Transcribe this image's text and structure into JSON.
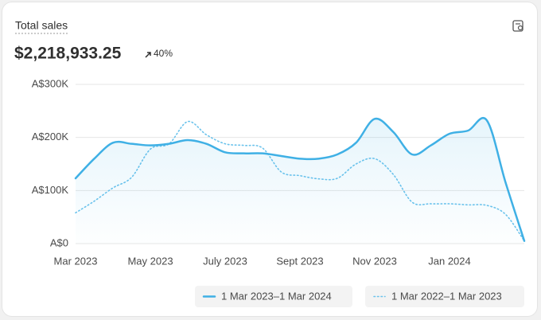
{
  "chart_data": {
    "type": "line",
    "title": "Total sales",
    "total": "$2,218,933.25",
    "change": "40%",
    "categories": [
      "Mar 2023",
      null,
      null,
      null,
      "May 2023",
      null,
      null,
      null,
      "July 2023",
      null,
      null,
      null,
      "Sept 2023",
      null,
      null,
      null,
      "Nov 2023",
      null,
      null,
      null,
      "Jan 2024",
      null,
      null,
      null,
      null
    ],
    "series": [
      {
        "name": "1 Mar 2023–1 Mar 2024",
        "color": "#3fb0e5",
        "style": "solid",
        "values": [
          123000,
          160000,
          190000,
          188000,
          185000,
          188000,
          195000,
          188000,
          172000,
          170000,
          170000,
          165000,
          160000,
          160000,
          168000,
          190000,
          235000,
          210000,
          168000,
          185000,
          207000,
          213000,
          232000,
          115000,
          5000
        ]
      },
      {
        "name": "1 Mar 2022–1 Mar 2023",
        "color": "#6cc3ec",
        "style": "dotted",
        "values": [
          58000,
          80000,
          105000,
          125000,
          178000,
          188000,
          230000,
          205000,
          188000,
          185000,
          180000,
          135000,
          128000,
          122000,
          123000,
          150000,
          160000,
          130000,
          78000,
          75000,
          75000,
          73000,
          72000,
          55000,
          5000
        ]
      }
    ],
    "ylim": [
      0,
      300000
    ],
    "yticks": [
      {
        "value": 0,
        "label": "A$0"
      },
      {
        "value": 100000,
        "label": "A$100K"
      },
      {
        "value": 200000,
        "label": "A$200K"
      },
      {
        "value": 300000,
        "label": "A$300K"
      }
    ],
    "grid": true
  }
}
